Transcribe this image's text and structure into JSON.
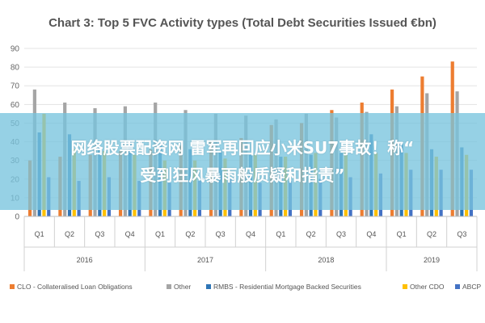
{
  "chart_data": {
    "type": "bar",
    "title": "Chart 3: Top 5 FVC Activity types (Total Debt Securities Issued €bn)",
    "ylim": [
      0,
      90
    ],
    "yticks": [
      0,
      10,
      20,
      30,
      40,
      50,
      60,
      70,
      80,
      90
    ],
    "grid": true,
    "legend_position": "bottom",
    "categories": [
      "Q1",
      "Q2",
      "Q3",
      "Q4",
      "Q1",
      "Q2",
      "Q3",
      "Q4",
      "Q1",
      "Q2",
      "Q3",
      "Q4",
      "Q1",
      "Q2",
      "Q3"
    ],
    "years": [
      {
        "label": "2016",
        "span": 4
      },
      {
        "label": "2017",
        "span": 4
      },
      {
        "label": "2018",
        "span": 4
      },
      {
        "label": "2019",
        "span": 3
      }
    ],
    "series": [
      {
        "name": "CLO - Collateralised Loan Obligations",
        "color": "#ED7D31",
        "values": [
          30,
          32,
          33,
          35,
          36,
          38,
          40,
          42,
          49,
          50,
          57,
          61,
          68,
          75,
          83
        ]
      },
      {
        "name": "Other",
        "color": "#A5A5A5",
        "values": [
          68,
          61,
          58,
          59,
          61,
          57,
          55,
          54,
          52,
          55,
          53,
          56,
          59,
          66,
          67
        ]
      },
      {
        "name": "RMBS - Residential Mortgage Backed Securities",
        "color": "#2E75B6",
        "values": [
          45,
          44,
          37,
          40,
          38,
          36,
          35,
          33,
          32,
          33,
          34,
          44,
          39,
          36,
          37
        ]
      },
      {
        "name": "Other CDO",
        "color": "#FFC000",
        "values": [
          55,
          36,
          35,
          33,
          30,
          30,
          31,
          33,
          32,
          34,
          35,
          34,
          34,
          32,
          33
        ]
      },
      {
        "name": "ABCP",
        "color": "#4472C4",
        "values": [
          21,
          19,
          21,
          19,
          18,
          19,
          20,
          18,
          19,
          20,
          21,
          23,
          25,
          25,
          25
        ]
      }
    ]
  },
  "overlay": {
    "line1": "网络股票配资网 雷军再回应小米SU7事故！称“",
    "line2": "受到狂风暴雨般质疑和指责”"
  }
}
